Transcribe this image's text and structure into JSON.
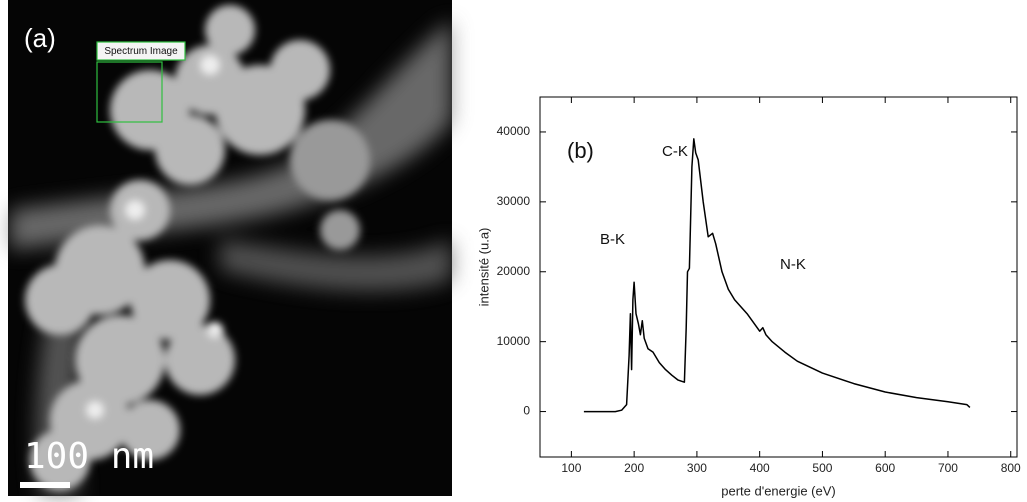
{
  "image_panel": {
    "label": "(a)",
    "roi_label": "Spectrum Image",
    "scale_bar": "100 nm"
  },
  "chart_data": {
    "type": "line",
    "xlabel": "perte d'energie (eV)",
    "ylabel": "intensité (u.a)",
    "annotations": [
      "(b)",
      "B-K",
      "C-K",
      "N-K"
    ],
    "x": [
      120,
      170,
      180,
      188,
      192,
      194,
      196,
      198,
      200,
      203,
      207,
      210,
      213,
      216,
      222,
      230,
      240,
      250,
      260,
      270,
      280,
      283,
      285,
      288,
      292,
      295,
      298,
      302,
      310,
      318,
      325,
      330,
      340,
      350,
      360,
      380,
      400,
      405,
      410,
      420,
      440,
      460,
      500,
      550,
      600,
      650,
      700,
      730,
      735
    ],
    "values": [
      0,
      0,
      200,
      1000,
      8000,
      14000,
      6000,
      16000,
      18500,
      14000,
      12500,
      11000,
      13000,
      10500,
      9000,
      8500,
      7000,
      6000,
      5200,
      4500,
      4200,
      12000,
      20000,
      20500,
      35000,
      39000,
      37000,
      36000,
      30000,
      25000,
      25500,
      24000,
      20000,
      17500,
      16000,
      14000,
      11500,
      12000,
      11000,
      10000,
      8500,
      7200,
      5500,
      4000,
      2800,
      2000,
      1400,
      1000,
      600
    ],
    "color": "#000000",
    "xlim": [
      50,
      810
    ],
    "ylim": [
      -6500,
      45000
    ],
    "xticks": [
      100,
      200,
      300,
      400,
      500,
      600,
      700,
      800
    ],
    "yticks": [
      0,
      10000,
      20000,
      30000,
      40000
    ]
  }
}
